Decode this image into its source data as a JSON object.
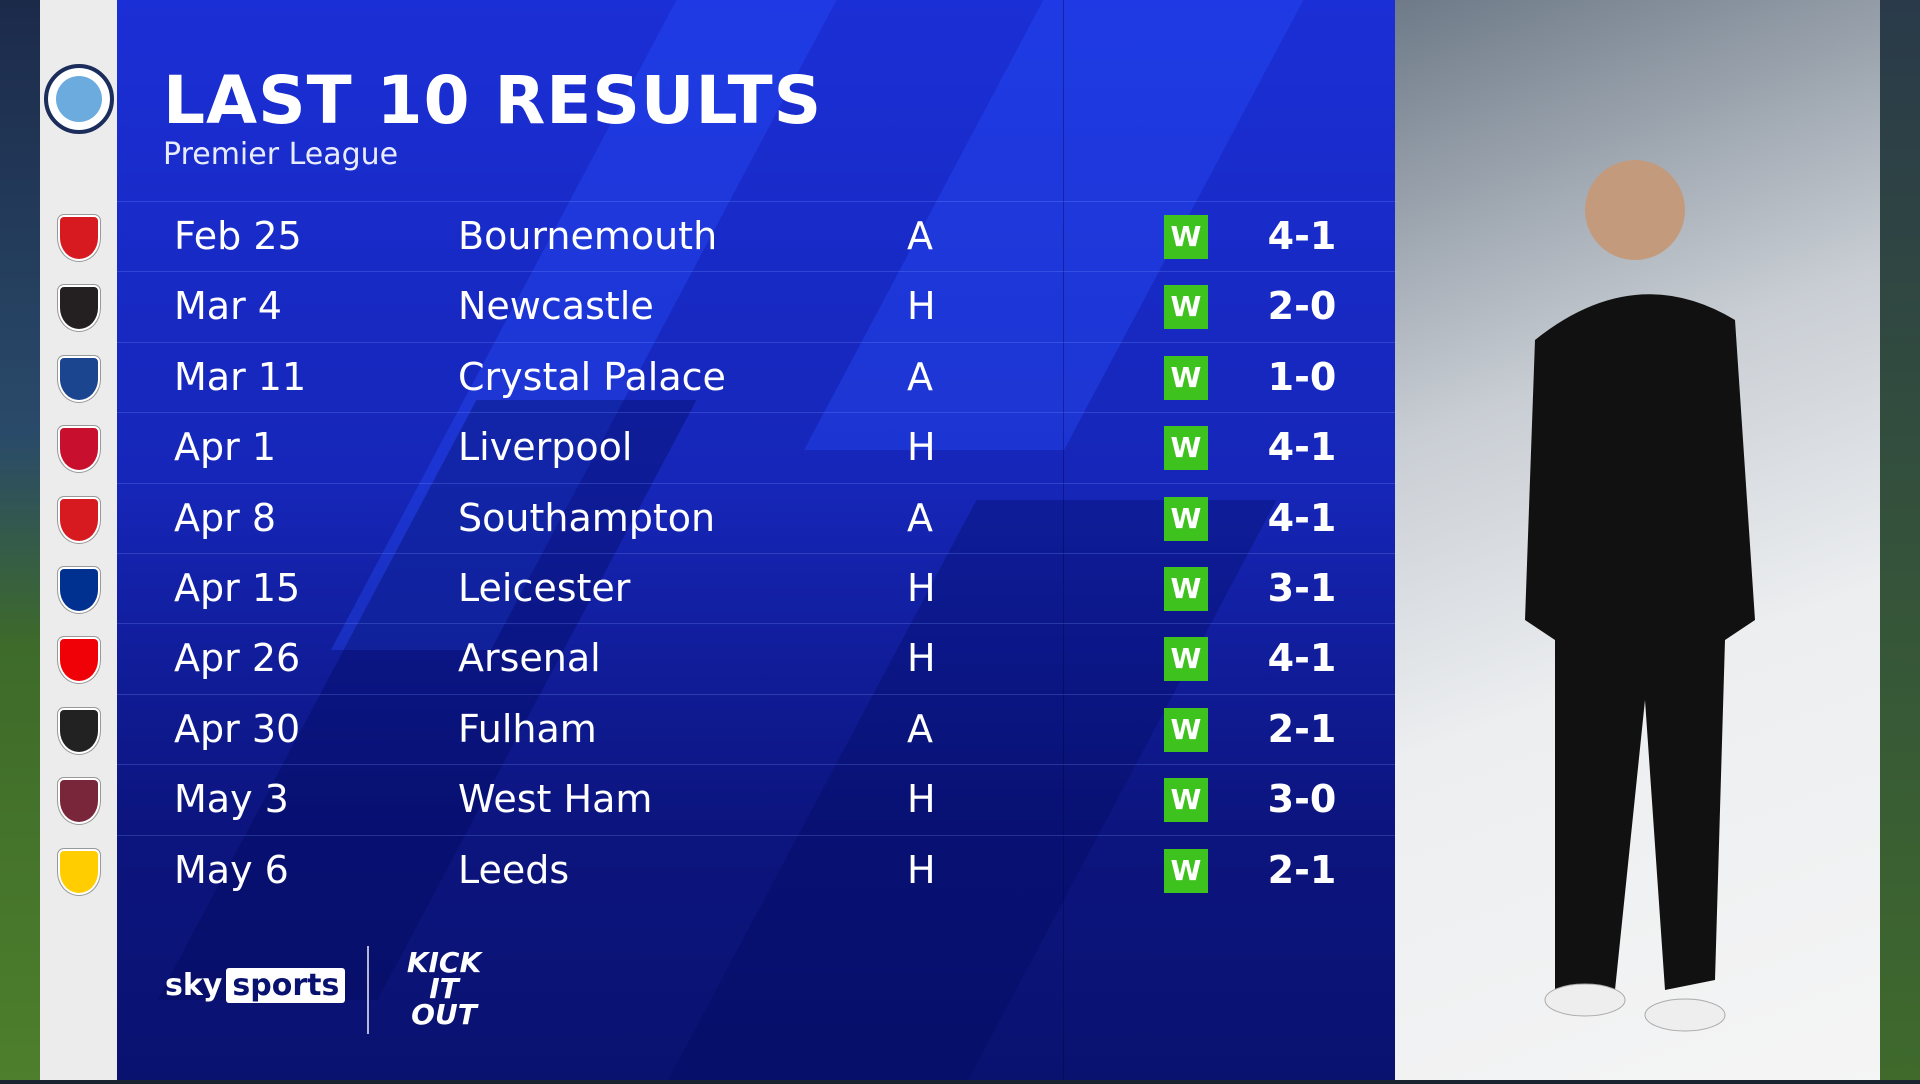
{
  "header": {
    "title": "LAST 10 RESULTS",
    "subtitle": "Premier League"
  },
  "team_crest": "manchester-city-crest",
  "results": [
    {
      "date": "Feb 25",
      "opponent": "Bournemouth",
      "venue": "A",
      "result": "W",
      "score": "4-1",
      "crest_color": "#d71920"
    },
    {
      "date": "Mar 4",
      "opponent": "Newcastle",
      "venue": "H",
      "result": "W",
      "score": "2-0",
      "crest_color": "#241f20"
    },
    {
      "date": "Mar 11",
      "opponent": "Crystal Palace",
      "venue": "A",
      "result": "W",
      "score": "1-0",
      "crest_color": "#1b458f"
    },
    {
      "date": "Apr 1",
      "opponent": "Liverpool",
      "venue": "H",
      "result": "W",
      "score": "4-1",
      "crest_color": "#c8102e"
    },
    {
      "date": "Apr 8",
      "opponent": "Southampton",
      "venue": "A",
      "result": "W",
      "score": "4-1",
      "crest_color": "#d71920"
    },
    {
      "date": "Apr 15",
      "opponent": "Leicester",
      "venue": "H",
      "result": "W",
      "score": "3-1",
      "crest_color": "#003090"
    },
    {
      "date": "Apr 26",
      "opponent": "Arsenal",
      "venue": "H",
      "result": "W",
      "score": "4-1",
      "crest_color": "#ef0107"
    },
    {
      "date": "Apr 30",
      "opponent": "Fulham",
      "venue": "A",
      "result": "W",
      "score": "2-1",
      "crest_color": "#222222"
    },
    {
      "date": "May 3",
      "opponent": "West Ham",
      "venue": "H",
      "result": "W",
      "score": "3-0",
      "crest_color": "#7a263a"
    },
    {
      "date": "May 6",
      "opponent": "Leeds",
      "venue": "H",
      "result": "W",
      "score": "2-1",
      "crest_color": "#ffcd00"
    }
  ],
  "colors": {
    "win": "#3ec21e",
    "panel": "#1626b8"
  },
  "footer": {
    "broadcaster_sky": "sky",
    "broadcaster_sports": "sports",
    "campaign": "KICK IT OUT"
  }
}
